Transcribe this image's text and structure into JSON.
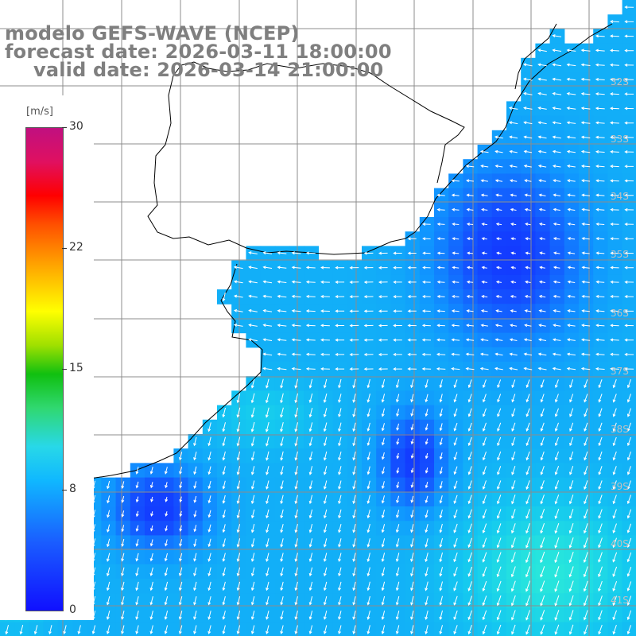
{
  "title": {
    "line1": "modelo GEFS-WAVE (NCEP)",
    "line2": "forecast date: 2026-03-11 18:00:00",
    "line3": "valid date: 2026-03-14 21:00:00"
  },
  "colorbar": {
    "unit": "[m/s]",
    "ticks": [
      "30",
      "22",
      "15",
      "8",
      "0"
    ],
    "tick_values": [
      30,
      22,
      15,
      8,
      0
    ],
    "range": [
      0,
      30
    ]
  },
  "lat_labels": [
    "32S",
    "33S",
    "34S",
    "35S",
    "36S",
    "37S",
    "38S",
    "39S",
    "40S",
    "41S"
  ],
  "colors": {
    "land": "#ffffff",
    "coast": "#000000",
    "grid": "#8c8c8c",
    "title": "#7f7f7f",
    "vector": "#ffffff"
  }
}
